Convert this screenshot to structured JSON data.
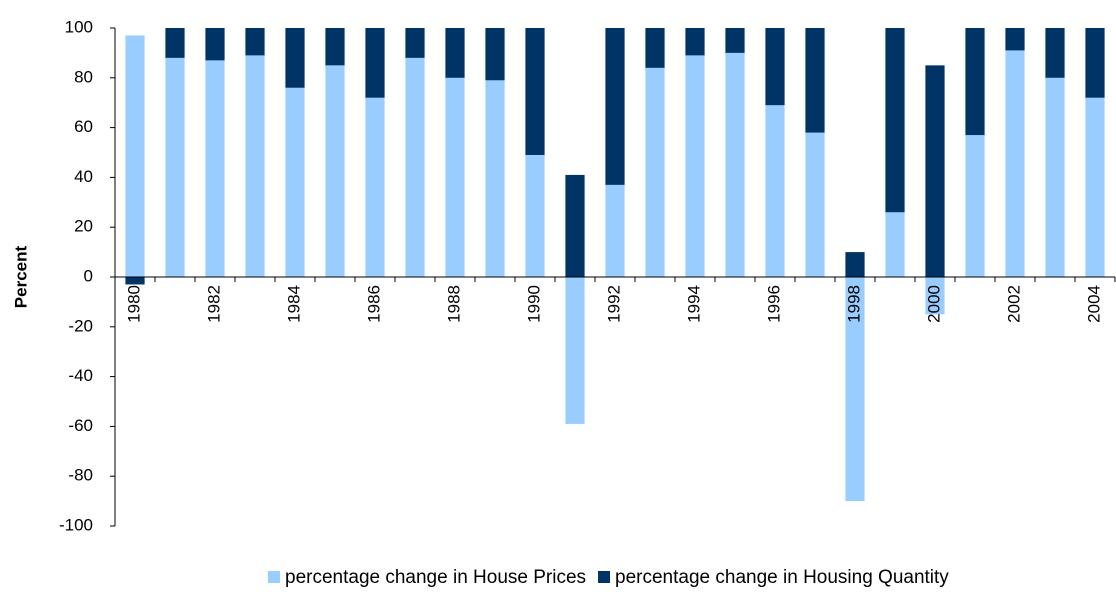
{
  "chart_data": {
    "type": "stacked_bar",
    "y_label": "Percent",
    "categories": [
      "1980",
      null,
      "1982",
      null,
      "1984",
      null,
      "1986",
      null,
      "1988",
      null,
      "1990",
      null,
      "1992",
      null,
      "1994",
      null,
      "1996",
      null,
      "1998",
      null,
      "2000",
      null,
      "2002",
      null,
      "2004"
    ],
    "series": [
      {
        "name": "percentage change in House Prices",
        "color": "#99ccff",
        "values": [
          97,
          88,
          87,
          89,
          76,
          85,
          72,
          88,
          80,
          79,
          49,
          -59,
          37,
          84,
          89,
          90,
          69,
          58,
          -90,
          26,
          -15,
          57,
          91,
          80,
          72
        ]
      },
      {
        "name": "percentage change in Housing Quantity",
        "color": "#003366",
        "values": [
          -3,
          12,
          13,
          11,
          24,
          15,
          28,
          12,
          20,
          21,
          51,
          41,
          63,
          16,
          11,
          10,
          31,
          42,
          10,
          74,
          85,
          43,
          9,
          20,
          28
        ]
      }
    ],
    "ylim": [
      -100,
      100
    ],
    "yticks": [
      -100,
      -80,
      -60,
      -40,
      -20,
      0,
      20,
      40,
      60,
      80,
      100
    ],
    "legend": "bottom"
  }
}
